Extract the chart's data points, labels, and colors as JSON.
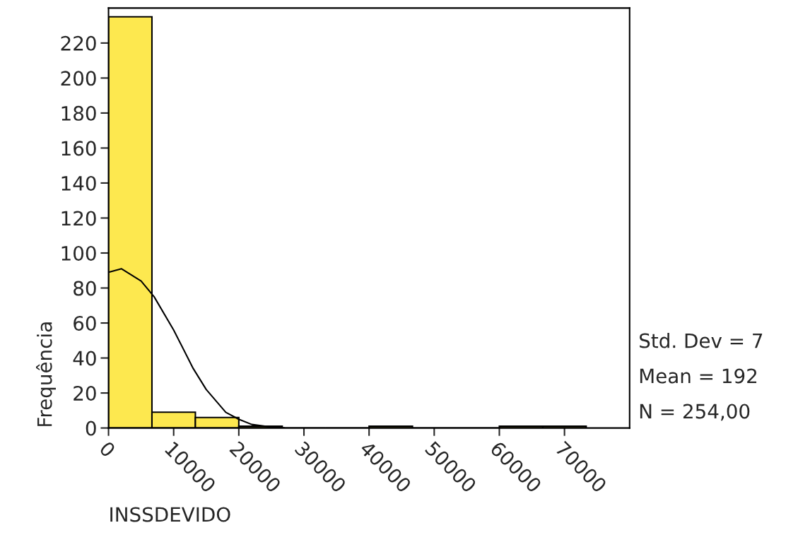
{
  "chart_data": {
    "type": "histogram",
    "xlabel": "INSSDEVIDO",
    "ylabel": "Frequência",
    "bins": [
      0,
      6667,
      13333,
      20000,
      26667,
      33333,
      40000,
      46667,
      53333,
      60000,
      66667,
      73333
    ],
    "values": [
      235,
      9,
      6,
      1,
      0,
      0,
      1,
      0,
      0,
      1,
      1
    ],
    "color": "#fde84f",
    "series": [
      {
        "type": "line",
        "color": "#000000",
        "x": [
          0,
          2000,
          5000,
          7000,
          10000,
          13000,
          15000,
          18000,
          20000,
          22000,
          25000,
          27000
        ],
        "values": [
          89,
          91,
          84,
          75,
          56,
          34,
          22,
          9,
          5,
          2,
          0.5,
          0
        ]
      }
    ],
    "xlim": [
      0,
      80000
    ],
    "xticks": [
      0,
      10000,
      20000,
      30000,
      40000,
      50000,
      60000,
      70000
    ],
    "ylim": [
      0,
      240
    ],
    "yticks": [
      0,
      20,
      40,
      60,
      80,
      100,
      120,
      140,
      160,
      180,
      200,
      220
    ],
    "annotations": [
      "Std. Dev = 7",
      "Mean = 192",
      "N = 254,00"
    ],
    "grid": false,
    "legend": false
  }
}
